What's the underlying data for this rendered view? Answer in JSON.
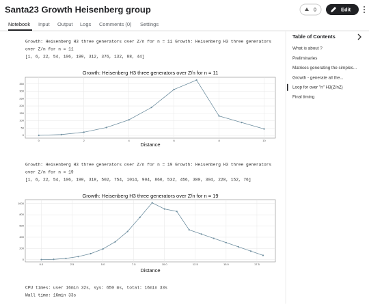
{
  "header": {
    "title": "Santa23 Growth Heisenberg group",
    "votes": "0",
    "edit": "Edit"
  },
  "tabs": [
    "Notebook",
    "Input",
    "Output",
    "Logs",
    "Comments (0)",
    "Settings"
  ],
  "outputs": [
    {
      "lines": [
        "Growth: Heisenberg H3 three generators over Z/n for n = 11 Growth: Heisenberg H3 three generators",
        "over Z/n for n = 11",
        "[1, 6, 22, 54, 106, 190, 312, 376, 132, 88, 44]"
      ]
    },
    {
      "lines": [
        "Growth: Heisenberg H3 three generators over Z/n for n = 19 Growth: Heisenberg H3 three generators",
        "over Z/n for n = 19",
        "[1, 6, 22, 54, 106, 190, 318, 502, 754, 1014, 904, 860, 532, 456, 380, 304, 228, 152, 76]"
      ]
    }
  ],
  "charts": [
    {
      "type": "line",
      "title": "Growth: Heisenberg H3 three generators over Z/n for n = 11",
      "xlabel": "Distance",
      "x": [
        0,
        1,
        2,
        3,
        4,
        5,
        6,
        7,
        8,
        9,
        10
      ],
      "values": [
        1,
        6,
        22,
        54,
        106,
        190,
        312,
        376,
        132,
        88,
        44
      ],
      "xlim": [
        -0.6,
        10.5
      ],
      "xticks": [
        0,
        2,
        4,
        6,
        8,
        10
      ],
      "ylim": [
        -18,
        395
      ],
      "yticks": [
        0,
        50,
        100,
        150,
        200,
        250,
        300,
        350
      ],
      "color": "#6f8fa0",
      "grid": true
    },
    {
      "type": "line",
      "title": "Growth: Heisenberg H3 three generators over Z/n for n = 19",
      "xlabel": "Distance",
      "x": [
        0,
        1,
        2,
        3,
        4,
        5,
        6,
        7,
        8,
        9,
        10,
        11,
        12,
        13,
        14,
        15,
        16,
        17,
        18
      ],
      "values": [
        1,
        6,
        22,
        54,
        106,
        190,
        318,
        502,
        754,
        1014,
        904,
        860,
        532,
        456,
        380,
        304,
        228,
        152,
        76
      ],
      "xlim": [
        -1.3,
        19.0
      ],
      "xticks": [
        {
          "value": 0,
          "label": "0.0"
        },
        {
          "value": 2.5,
          "label": "2.5"
        },
        {
          "value": 5,
          "label": "5.0"
        },
        {
          "value": 7.5,
          "label": "7.5"
        },
        {
          "value": 10,
          "label": "10.0"
        },
        {
          "value": 12.5,
          "label": "12.5"
        },
        {
          "value": 15,
          "label": "15.0"
        },
        {
          "value": 17.5,
          "label": "17.5"
        }
      ],
      "ylim": [
        -40,
        1070
      ],
      "yticks": [
        0,
        200,
        400,
        600,
        800,
        1000
      ],
      "color": "#6f8fa0",
      "grid": true
    }
  ],
  "timing": [
    "CPU times: user 16min 32s, sys: 650 ms, total: 16min 33s",
    "Wall time: 16min 33s"
  ],
  "toc": {
    "title": "Table of Contents",
    "items": [
      "What is about ?",
      "Preliminaries",
      "Matrices generating the simples...",
      "Growth - generate all the...",
      "Loop for over \"n\" H3(Z/nZ)",
      "Final timing"
    ],
    "active": 4
  }
}
